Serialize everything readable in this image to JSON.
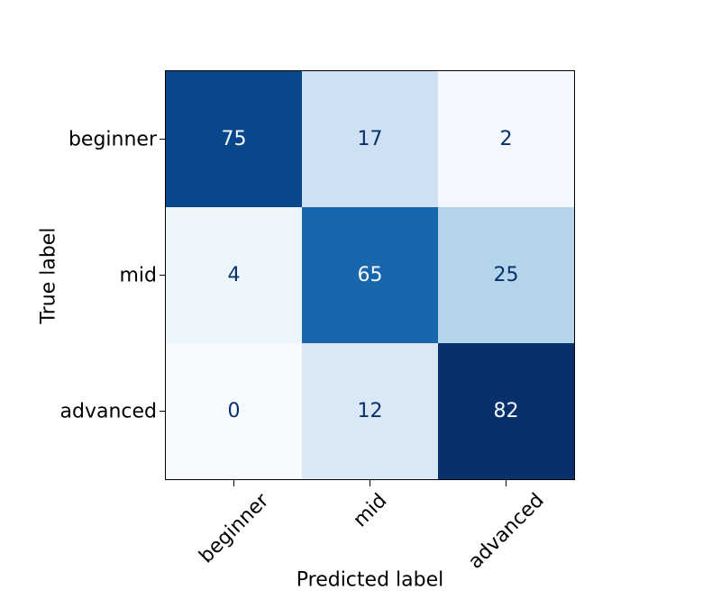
{
  "chart_data": {
    "type": "heatmap",
    "subtype": "confusion-matrix",
    "title": "",
    "xlabel": "Predicted label",
    "ylabel": "True label",
    "x_tick_labels": [
      "beginner",
      "mid",
      "advanced"
    ],
    "y_tick_labels": [
      "beginner",
      "mid",
      "advanced"
    ],
    "matrix": [
      [
        75,
        17,
        2
      ],
      [
        4,
        65,
        25
      ],
      [
        0,
        12,
        82
      ]
    ],
    "colormap": "Blues",
    "vmin": 0,
    "vmax": 82,
    "grid": false,
    "legend": "none",
    "colorbar": false,
    "cell_colors": [
      [
        "#08478c",
        "#cee0f2",
        "#f2f8fd"
      ],
      [
        "#edf5fc",
        "#1966ad",
        "#b4d4e9"
      ],
      [
        "#f7fbff",
        "#dae8f6",
        "#08306b"
      ]
    ],
    "cell_text_colors": [
      [
        "#f7fbff",
        "#08306b",
        "#08306b"
      ],
      [
        "#08306b",
        "#f7fbff",
        "#08306b"
      ],
      [
        "#08306b",
        "#08306b",
        "#f7fbff"
      ]
    ],
    "colors": {
      "background": "#ffffff",
      "spine": "#000000",
      "tick_text": "#000000",
      "dark_cell_text": "#f7fbff",
      "light_cell_text": "#08306b"
    }
  }
}
